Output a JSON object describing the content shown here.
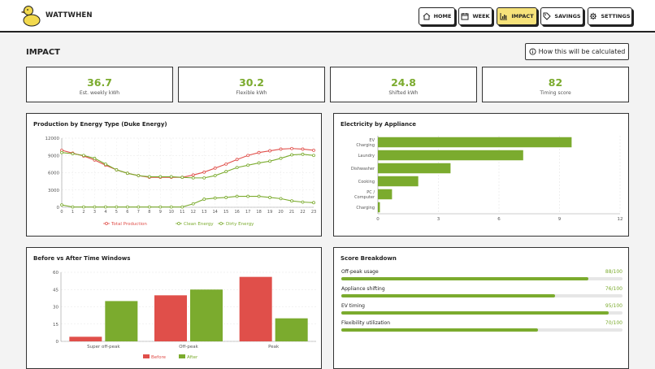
{
  "app": {
    "brand": "WATTWHEN"
  },
  "nav": [
    {
      "label": "HOME",
      "icon": "home-icon",
      "active": false
    },
    {
      "label": "WEEK",
      "icon": "calendar-icon",
      "active": false
    },
    {
      "label": "IMPACT",
      "icon": "bar-chart-icon",
      "active": true
    },
    {
      "label": "SAVINGS",
      "icon": "tag-icon",
      "active": false
    },
    {
      "label": "SETTINGS",
      "icon": "gear-icon",
      "active": false
    }
  ],
  "page": {
    "title": "IMPACT",
    "calc_button": "How this will be calculated"
  },
  "stats": [
    {
      "value": "36.7",
      "label": "Est. weekly kWh"
    },
    {
      "value": "30.2",
      "label": "Flexible kWh"
    },
    {
      "value": "24.8",
      "label": "Shifted kWh"
    },
    {
      "value": "82",
      "label": "Timing score"
    }
  ],
  "colors": {
    "green": "#7bab2e",
    "red": "#e04f4a",
    "accent_yellow": "#f6e27a"
  },
  "chart_data": [
    {
      "type": "line",
      "title": "Production by Energy Type (Duke Energy)",
      "x": [
        0,
        1,
        2,
        3,
        4,
        5,
        6,
        7,
        8,
        9,
        10,
        11,
        12,
        13,
        14,
        15,
        16,
        17,
        18,
        19,
        20,
        21,
        22,
        23
      ],
      "ylim": [
        0,
        12000
      ],
      "yticks": [
        0,
        3000,
        6000,
        9000,
        12000
      ],
      "legend_position": "bottom",
      "series": [
        {
          "name": "Total Production",
          "color": "#e04f4a",
          "values": [
            9900,
            9400,
            8900,
            8200,
            7300,
            6500,
            5900,
            5500,
            5200,
            5200,
            5200,
            5200,
            5600,
            6100,
            6800,
            7500,
            8300,
            9000,
            9500,
            9800,
            10100,
            10200,
            10100,
            9900
          ]
        },
        {
          "name": "Clean Energy",
          "color": "#7bab2e",
          "values": [
            9500,
            9300,
            9000,
            8500,
            7500,
            6500,
            5900,
            5500,
            5300,
            5300,
            5300,
            5200,
            5100,
            5100,
            5500,
            6200,
            6900,
            7300,
            7700,
            8000,
            8500,
            9100,
            9200,
            9000
          ]
        },
        {
          "name": "Dirty Energy",
          "color": "#7bab2e",
          "values": [
            400,
            50,
            50,
            50,
            50,
            50,
            50,
            50,
            50,
            50,
            50,
            50,
            600,
            1400,
            1600,
            1700,
            1900,
            1900,
            1900,
            1700,
            1500,
            1100,
            900,
            800
          ]
        }
      ]
    },
    {
      "type": "bar",
      "orientation": "horizontal",
      "title": "Electricity by Appliance",
      "categories": [
        [
          "EV",
          "Charging"
        ],
        [
          "Laundry"
        ],
        [
          "Dishwasher"
        ],
        [
          "Cooking"
        ],
        [
          "PC /",
          "Computer"
        ],
        [
          "Charging"
        ]
      ],
      "values": [
        9.6,
        7.2,
        3.6,
        2.0,
        0.7,
        0.1
      ],
      "xlim": [
        0,
        12
      ],
      "xticks": [
        0,
        3,
        6,
        9,
        12
      ],
      "color": "#7bab2e"
    },
    {
      "type": "bar",
      "title": "Before vs After Time Windows",
      "categories": [
        "Super off-peak",
        "Off-peak",
        "Peak"
      ],
      "ylim": [
        0,
        60
      ],
      "yticks": [
        0,
        15,
        30,
        45,
        60
      ],
      "legend_position": "bottom",
      "series": [
        {
          "name": "Before",
          "color": "#e04f4a",
          "values": [
            4,
            40,
            56
          ]
        },
        {
          "name": "After",
          "color": "#7bab2e",
          "values": [
            35,
            45,
            20
          ]
        }
      ]
    }
  ],
  "score": {
    "title": "Score Breakdown",
    "rows": [
      {
        "label": "Off-peak usage",
        "value": "88/100",
        "fraction": 0.88
      },
      {
        "label": "Appliance shifting",
        "value": "76/100",
        "fraction": 0.76
      },
      {
        "label": "EV timing",
        "value": "95/100",
        "fraction": 0.95
      },
      {
        "label": "Flexibility utilization",
        "value": "70/100",
        "fraction": 0.7
      }
    ]
  }
}
